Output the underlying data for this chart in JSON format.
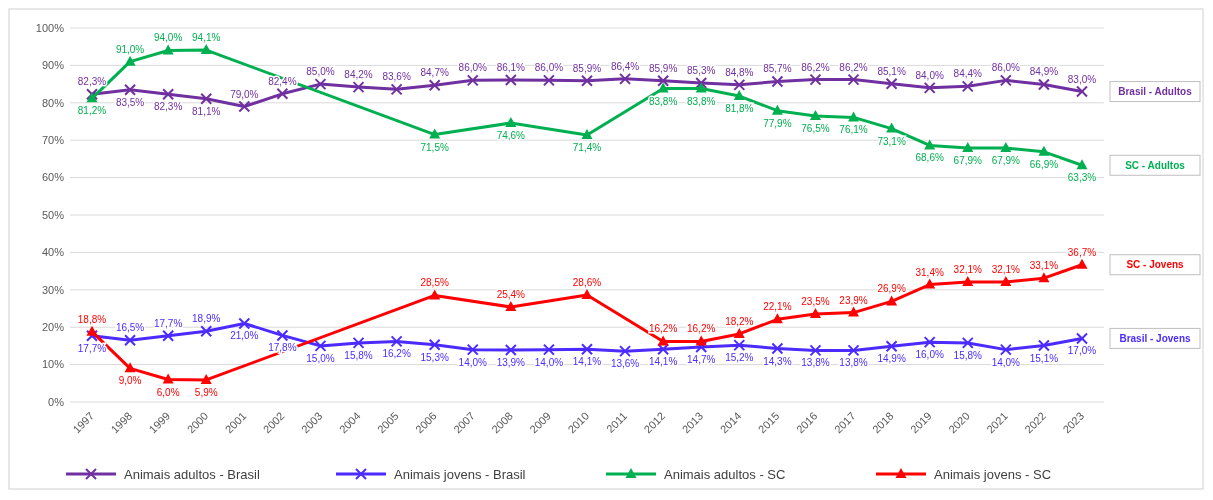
{
  "chart_data": {
    "type": "line",
    "categories": [
      "1997",
      "1998",
      "1999",
      "2000",
      "2001",
      "2002",
      "2003",
      "2004",
      "2005",
      "2006",
      "2007",
      "2008",
      "2009",
      "2010",
      "2011",
      "2012",
      "2013",
      "2014",
      "2015",
      "2016",
      "2017",
      "2018",
      "2019",
      "2020",
      "2021",
      "2022",
      "2023"
    ],
    "series": [
      {
        "name": "Animais adultos - Brasil",
        "color": "#7030a0",
        "marker": "cross",
        "values": [
          82.3,
          83.5,
          82.3,
          81.1,
          79.0,
          82.4,
          85.0,
          84.2,
          83.6,
          84.7,
          86.0,
          86.1,
          86.0,
          85.9,
          86.4,
          85.9,
          85.3,
          84.8,
          85.7,
          86.2,
          86.2,
          85.1,
          84.0,
          84.4,
          86.0,
          84.9,
          83.0
        ],
        "value_labels": [
          "82,3%",
          "83,5%",
          "82,3%",
          "81,1%",
          "79,0%",
          "82,4%",
          "85,0%",
          "84,2%",
          "83,6%",
          "84,7%",
          "86,0%",
          "86,1%",
          "86,0%",
          "85,9%",
          "86,4%",
          "85,9%",
          "85,3%",
          "84,8%",
          "85,7%",
          "86,2%",
          "86,2%",
          "85,1%",
          "84,0%",
          "84,4%",
          "86,0%",
          "84,9%",
          "83,0%"
        ]
      },
      {
        "name": "Animais jovens - Brasil",
        "color": "#4b2bff",
        "marker": "cross",
        "values": [
          17.7,
          16.5,
          17.7,
          18.9,
          21.0,
          17.8,
          15.0,
          15.8,
          16.2,
          15.3,
          14.0,
          13.9,
          14.0,
          14.1,
          13.6,
          14.1,
          14.7,
          15.2,
          14.3,
          13.8,
          13.8,
          14.9,
          16.0,
          15.8,
          14.0,
          15.1,
          17.0
        ],
        "value_labels": [
          "17,7%",
          "16,5%",
          "17,7%",
          "18,9%",
          "21,0%",
          "17,8%",
          "15,0%",
          "15,8%",
          "16,2%",
          "15,3%",
          "14,0%",
          "13,9%",
          "14,0%",
          "14,1%",
          "13,6%",
          "14,1%",
          "14,7%",
          "15,2%",
          "14,3%",
          "13,8%",
          "13,8%",
          "14,9%",
          "16,0%",
          "15,8%",
          "14,0%",
          "15,1%",
          "17,0%"
        ]
      },
      {
        "name": "Animais adultos - SC",
        "color": "#00b050",
        "marker": "triangle",
        "values": [
          81.2,
          91.0,
          94.0,
          94.1,
          null,
          null,
          null,
          null,
          null,
          71.5,
          null,
          74.6,
          null,
          71.4,
          null,
          83.8,
          83.8,
          81.8,
          77.9,
          76.5,
          76.1,
          73.1,
          68.6,
          67.9,
          67.9,
          66.9,
          63.3
        ],
        "value_labels": [
          "81,2%",
          "91,0%",
          "94,0%",
          "94,1%",
          null,
          null,
          null,
          null,
          null,
          "71,5%",
          null,
          "74,6%",
          null,
          "71,4%",
          null,
          "83,8%",
          "83,8%",
          "81,8%",
          "77,9%",
          "76,5%",
          "76,1%",
          "73,1%",
          "68,6%",
          "67,9%",
          "67,9%",
          "66,9%",
          "63,3%"
        ]
      },
      {
        "name": "Animais jovens - SC",
        "color": "#ff0000",
        "marker": "triangle",
        "values": [
          18.8,
          9.0,
          6.0,
          5.9,
          null,
          null,
          null,
          null,
          null,
          28.5,
          null,
          25.4,
          null,
          28.6,
          null,
          16.2,
          16.2,
          18.2,
          22.1,
          23.5,
          23.9,
          26.9,
          31.4,
          32.1,
          32.1,
          33.1,
          36.7
        ],
        "value_labels": [
          "18,8%",
          "9,0%",
          "6,0%",
          "5,9%",
          null,
          null,
          null,
          null,
          null,
          "28,5%",
          null,
          "25,4%",
          null,
          "28,6%",
          null,
          "16,2%",
          "16,2%",
          "18,2%",
          "22,1%",
          "23,5%",
          "23,9%",
          "26,9%",
          "31,4%",
          "32,1%",
          "32,1%",
          "33,1%",
          "36,7%"
        ]
      }
    ],
    "ylim": [
      0,
      100
    ],
    "yticks": [
      {
        "value": 0,
        "label": "0%"
      },
      {
        "value": 10,
        "label": "10%"
      },
      {
        "value": 20,
        "label": "20%"
      },
      {
        "value": 30,
        "label": "30%"
      },
      {
        "value": 40,
        "label": "40%"
      },
      {
        "value": 50,
        "label": "50%"
      },
      {
        "value": 60,
        "label": "60%"
      },
      {
        "value": 70,
        "label": "70%"
      },
      {
        "value": 80,
        "label": "80%"
      },
      {
        "value": 90,
        "label": "90%"
      },
      {
        "value": 100,
        "label": "100%"
      }
    ],
    "grid": "y",
    "legend": "bottom",
    "annotations": [
      "Brasil - Adultos",
      "SC - Adultos",
      "SC - Jovens",
      "Brasil - Jovens"
    ]
  }
}
